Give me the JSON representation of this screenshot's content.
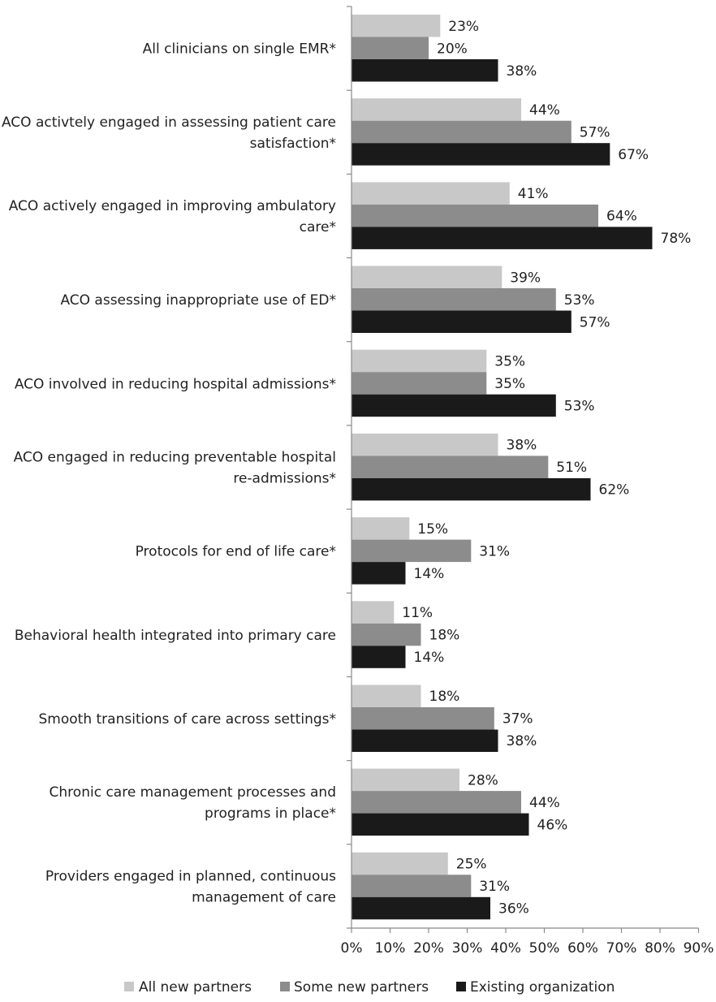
{
  "chart_data": {
    "type": "bar",
    "orientation": "horizontal",
    "title": "",
    "xlabel": "",
    "ylabel": "",
    "xlim": [
      0,
      90
    ],
    "x_tick_values": [
      0,
      10,
      20,
      30,
      40,
      50,
      60,
      70,
      80,
      90
    ],
    "x_tick_labels": [
      "0%",
      "10%",
      "20%",
      "30%",
      "40%",
      "50%",
      "60%",
      "70%",
      "80%",
      "90%"
    ],
    "grid": false,
    "legend_position": "bottom",
    "categories": [
      [
        "All clinicians on single EMR*"
      ],
      [
        "ACO activtely engaged in assessing patient care",
        "satisfaction*"
      ],
      [
        "ACO actively engaged in improving ambulatory",
        "care*"
      ],
      [
        "ACO assessing inappropriate use of ED*"
      ],
      [
        "ACO involved in reducing hospital admissions*"
      ],
      [
        "ACO engaged in reducing preventable hospital",
        "re-admissions*"
      ],
      [
        "Protocols for end of life care*"
      ],
      [
        "Behavioral health integrated into primary care"
      ],
      [
        "Smooth transitions of care across settings*"
      ],
      [
        "Chronic care management processes and",
        "programs in place*"
      ],
      [
        "Providers engaged in planned, continuous",
        "management of care"
      ]
    ],
    "series": [
      {
        "name": "All new partners",
        "color": "#c8c8c8",
        "values": [
          23,
          44,
          41,
          39,
          35,
          38,
          15,
          11,
          18,
          28,
          25
        ],
        "labels": [
          "23%",
          "44%",
          "41%",
          "39%",
          "35%",
          "38%",
          "15%",
          "11%",
          "18%",
          "28%",
          "25%"
        ]
      },
      {
        "name": "Some new partners",
        "color": "#8c8c8c",
        "values": [
          20,
          57,
          64,
          53,
          35,
          51,
          31,
          18,
          37,
          44,
          31
        ],
        "labels": [
          "20%",
          "57%",
          "64%",
          "53%",
          "35%",
          "51%",
          "31%",
          "18%",
          "37%",
          "44%",
          "31%"
        ]
      },
      {
        "name": "Existing organization",
        "color": "#1a1a1a",
        "values": [
          38,
          67,
          78,
          57,
          53,
          62,
          14,
          14,
          38,
          46,
          36
        ],
        "labels": [
          "38%",
          "67%",
          "78%",
          "57%",
          "53%",
          "62%",
          "14%",
          "14%",
          "38%",
          "46%",
          "36%"
        ]
      }
    ]
  }
}
